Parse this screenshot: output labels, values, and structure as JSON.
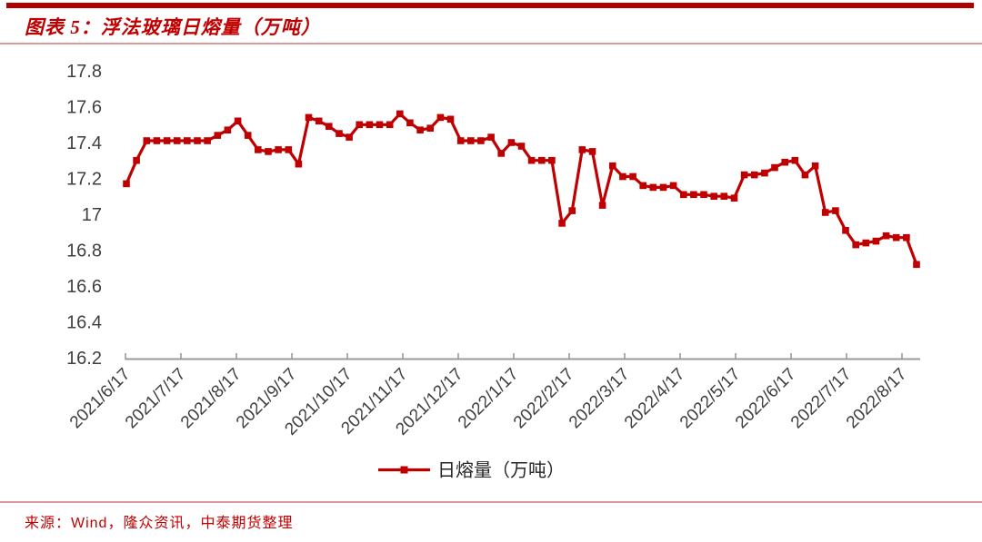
{
  "header": {
    "figure_title": "图表 5：浮法玻璃日熔量（万吨）"
  },
  "footer": {
    "source": "来源：Wind，隆众资讯，中泰期货整理"
  },
  "colors": {
    "accent_red": "#c00000",
    "top_bar_red": "#b20000",
    "rule_light_red": "#dc9a9a",
    "axis_gray": "#9a9a9a",
    "tick_label_gray": "#3f3f3f"
  },
  "chart_data": {
    "type": "line",
    "title": "浮法玻璃日熔量（万吨）",
    "xlabel": "",
    "ylabel": "",
    "ylim": [
      16.2,
      17.8
    ],
    "ytick_step": 0.2,
    "ytick_labels": [
      "17.8",
      "17.6",
      "17.4",
      "17.2",
      "17",
      "16.8",
      "16.6",
      "16.4",
      "16.2"
    ],
    "grid": false,
    "legend_position": "bottom",
    "marker": "square",
    "line_color": "#c00000",
    "x_tick_labels": [
      "2021/6/17",
      "2021/7/17",
      "2021/8/17",
      "2021/9/17",
      "2021/10/17",
      "2021/11/17",
      "2021/12/17",
      "2022/1/17",
      "2022/2/17",
      "2022/3/17",
      "2022/4/17",
      "2022/5/17",
      "2022/6/17",
      "2022/7/17",
      "2022/8/17"
    ],
    "series": [
      {
        "name": "日熔量（万吨）",
        "values": [
          17.17,
          17.3,
          17.41,
          17.41,
          17.41,
          17.41,
          17.41,
          17.41,
          17.41,
          17.44,
          17.47,
          17.52,
          17.44,
          17.36,
          17.35,
          17.36,
          17.36,
          17.28,
          17.54,
          17.52,
          17.49,
          17.45,
          17.43,
          17.5,
          17.5,
          17.5,
          17.5,
          17.56,
          17.51,
          17.47,
          17.48,
          17.54,
          17.53,
          17.41,
          17.41,
          17.41,
          17.43,
          17.34,
          17.4,
          17.38,
          17.3,
          17.3,
          17.3,
          16.95,
          17.02,
          17.36,
          17.35,
          17.05,
          17.27,
          17.21,
          17.21,
          17.16,
          17.15,
          17.15,
          17.16,
          17.11,
          17.11,
          17.11,
          17.1,
          17.1,
          17.09,
          17.22,
          17.22,
          17.23,
          17.26,
          17.29,
          17.3,
          17.22,
          17.27,
          17.01,
          17.02,
          16.91,
          16.83,
          16.84,
          16.85,
          16.88,
          16.87,
          16.87,
          16.72
        ]
      }
    ]
  }
}
